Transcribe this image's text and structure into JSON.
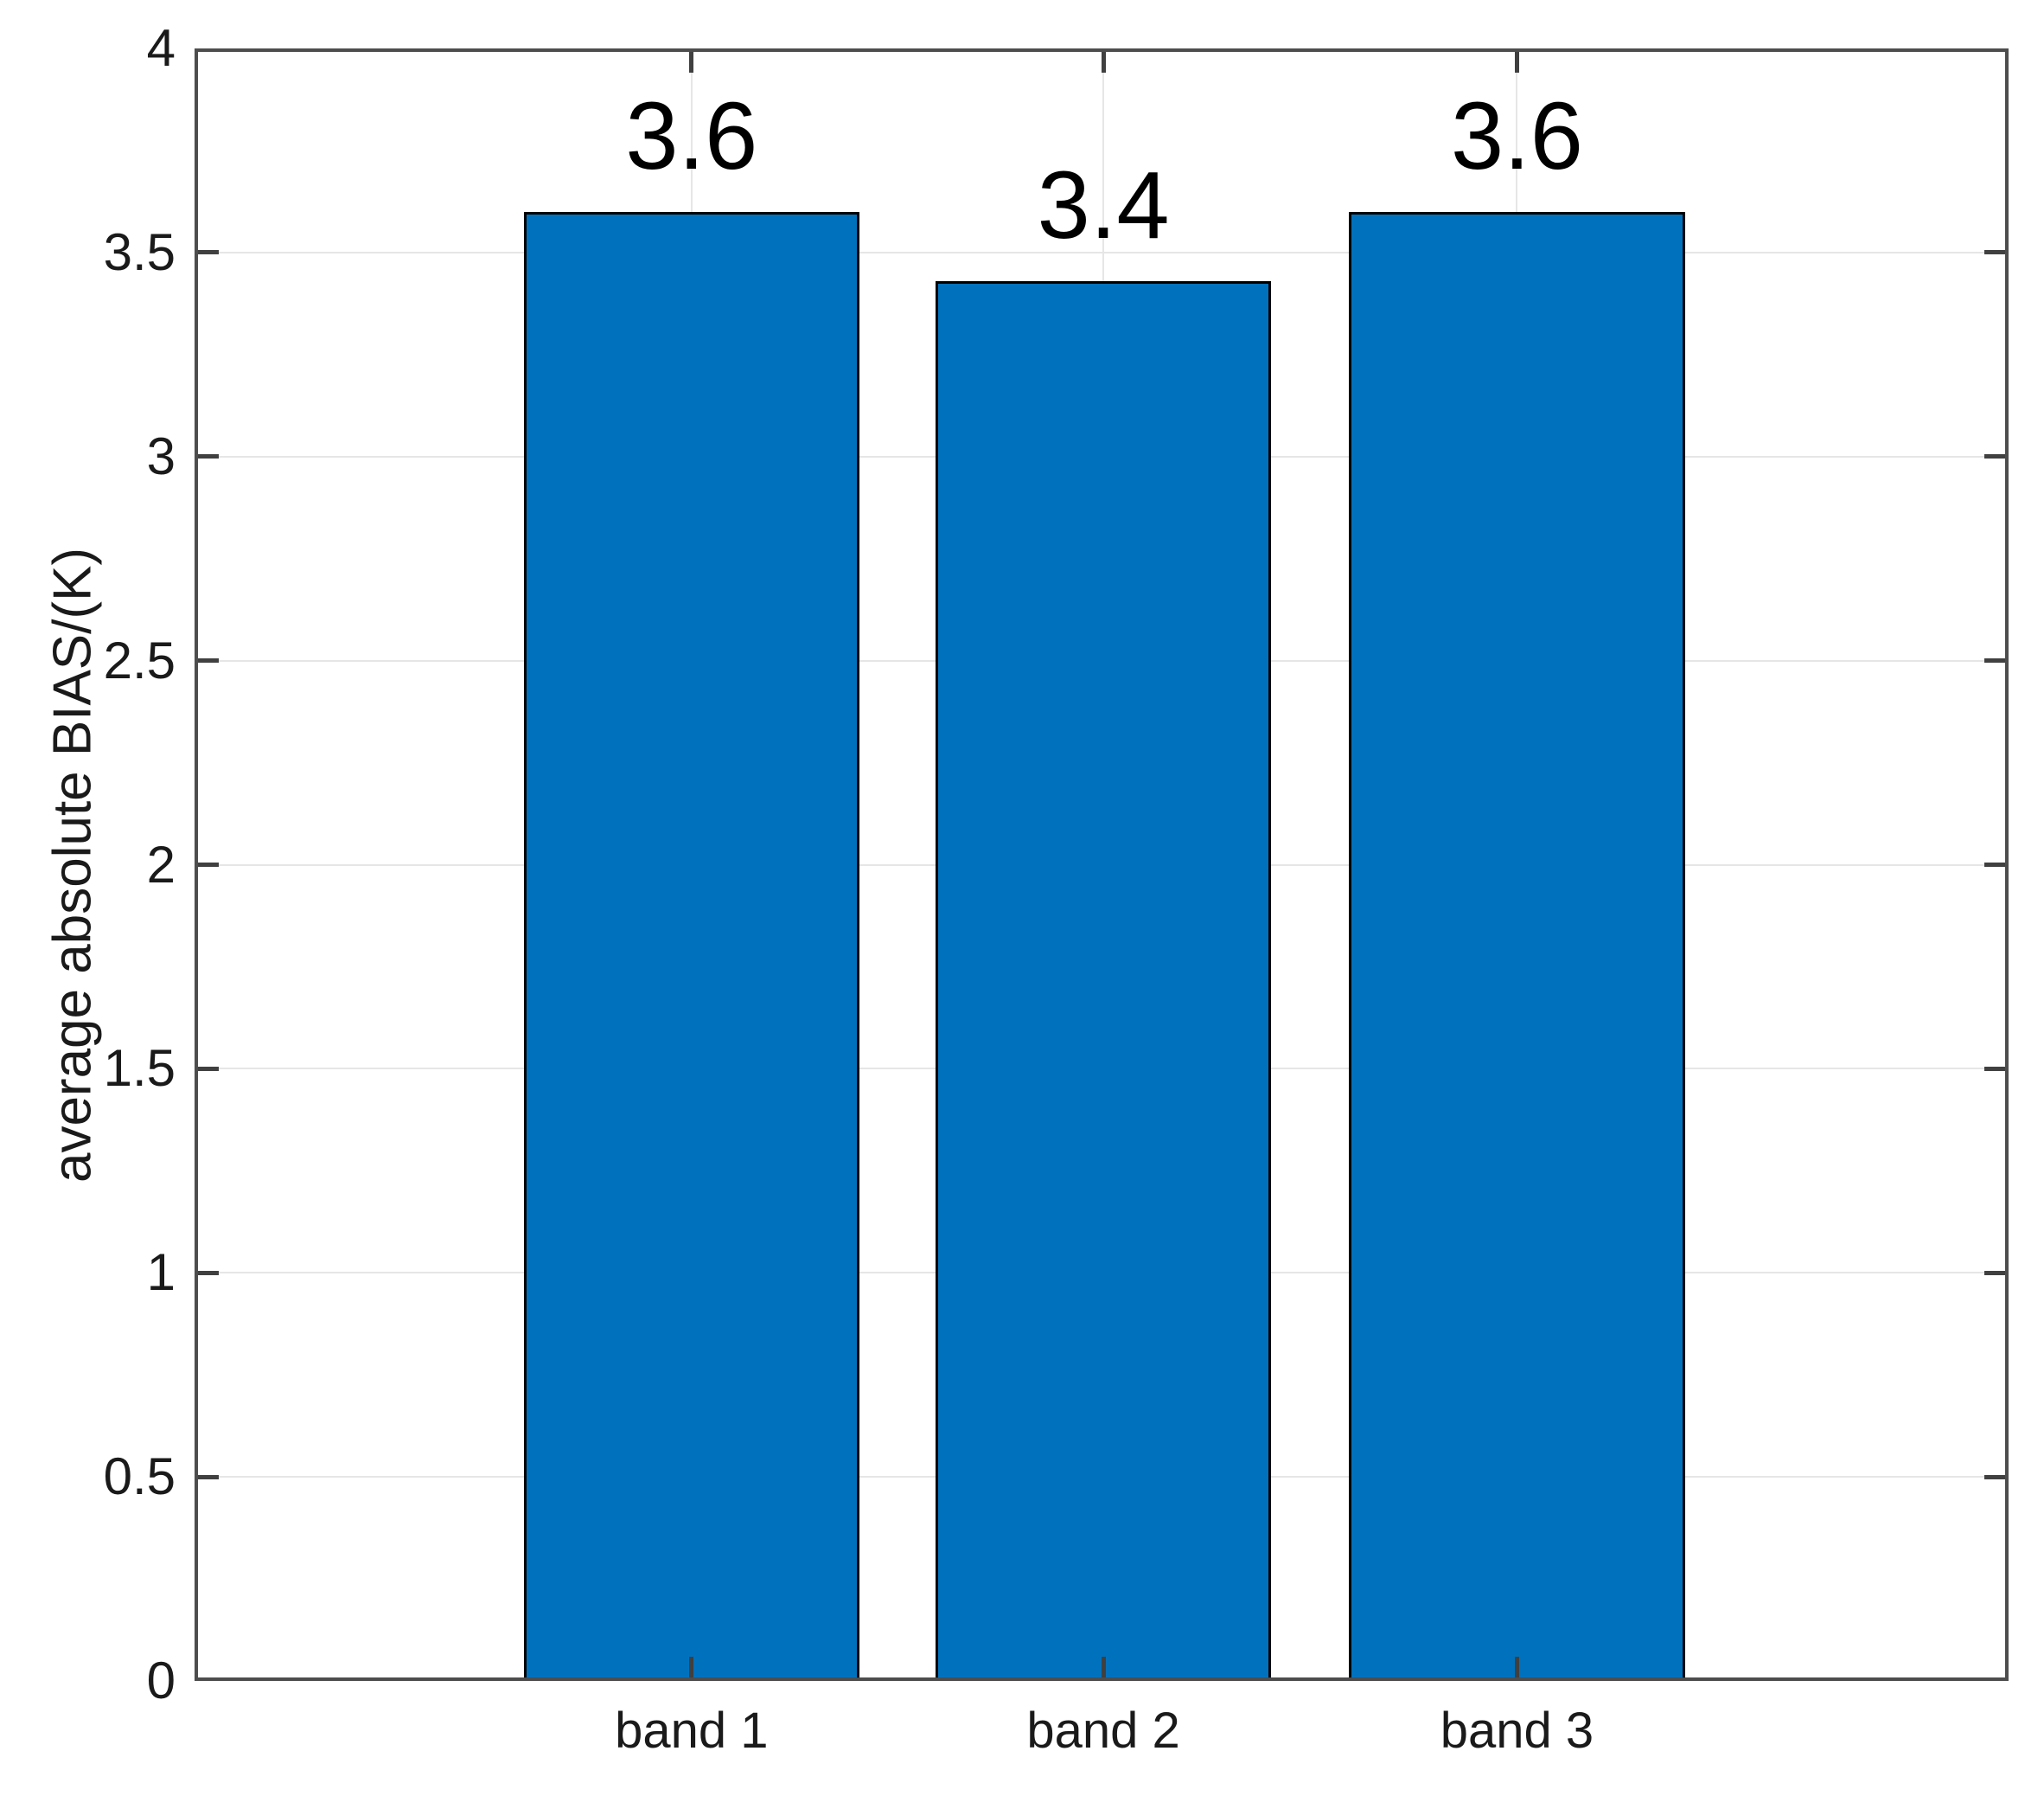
{
  "chart_data": {
    "type": "bar",
    "title": "",
    "xlabel": "",
    "ylabel": "average absolute BIAS/(K)",
    "categories": [
      "band 1",
      "band 2",
      "band 3"
    ],
    "values": [
      3.6,
      3.43,
      3.6
    ],
    "value_labels": [
      "3.6",
      "3.4",
      "3.6"
    ],
    "ylim": [
      0,
      4
    ],
    "yticks": [
      0,
      0.5,
      1,
      1.5,
      2,
      2.5,
      3,
      3.5,
      4
    ],
    "ytick_labels": [
      "0",
      "0.5",
      "1",
      "1.5",
      "2",
      "2.5",
      "3",
      "3.5",
      "4"
    ],
    "grid": true,
    "legend_position": "none",
    "colors": {
      "bar_fill": "#0072BD",
      "bar_edge": "#000000",
      "axis": "#4d4d4d",
      "tick": "#404040",
      "grid": "#e6e6e6",
      "tick_label": "#1a1a1a",
      "value_label": "#000000",
      "background": "#ffffff"
    },
    "layout": {
      "bar_centers_frac": [
        0.274,
        0.501,
        0.729
      ],
      "bar_width_frac": 0.185
    }
  }
}
